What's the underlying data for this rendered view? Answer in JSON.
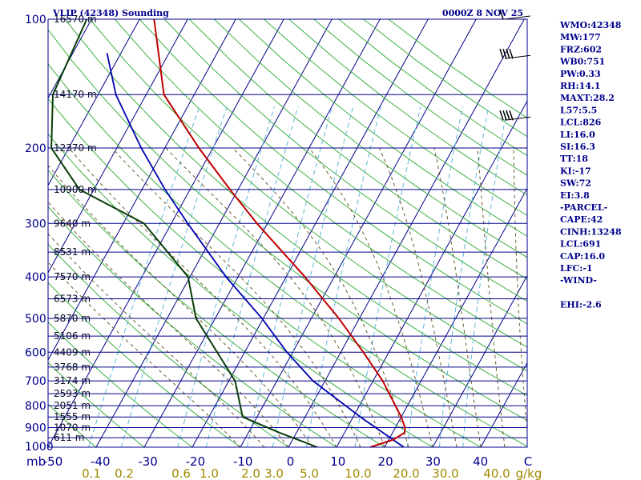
{
  "header": {
    "station_title": "VLIP (42348) Sounding",
    "time_label": "0000Z  8 NOV 25"
  },
  "indices": [
    "WMO:42348",
    "MW:177",
    "FRZ:602",
    "WB0:751",
    "PW:0.33",
    "RH:14.1",
    "MAXT:28.2",
    "L57:5.5",
    "LCL:826",
    "LI:16.0",
    "SI:16.3",
    "TT:18",
    "KI:-17",
    "SW:72",
    "EI:3.8",
    "-PARCEL-",
    "CAPE:42",
    "CINH:13248",
    "LCL:691",
    "CAP:16.0",
    "LFC:-1",
    "-WIND-",
    "",
    "EHI:-2.6"
  ],
  "colors": {
    "frame": "#00008b",
    "isobar": "#00008b",
    "isotherm": "#00008b",
    "dry_adiabat": "#3cb043",
    "mixing_ratio": "#5fb8d8",
    "moist_adiabat": "#6b5a2a",
    "temperature": "#c00000",
    "dewpoint": "#0a3d0a",
    "parcel": "#0000b0"
  },
  "chart_data": {
    "type": "skew-t",
    "x_axis_unit_label": "mb",
    "x_ticks": [
      "-50",
      "-40",
      "-30",
      "-20",
      "-10",
      "0",
      "10",
      "20",
      "30",
      "40",
      "C"
    ],
    "mixing_ratio_unit_label": "g/kg",
    "mixing_ratio_labels": [
      "0.1",
      "0.2",
      "0.6",
      "1.0",
      "2.0",
      "3.0",
      "5.0",
      "10.0",
      "20.0",
      "30.0",
      "40.0"
    ],
    "pressure_ticks": [
      "100",
      "200",
      "300",
      "400",
      "500",
      "600",
      "700",
      "800",
      "900",
      "1000"
    ],
    "pressure_range": [
      100,
      1000
    ],
    "temperature_range": [
      -50,
      50
    ],
    "height_labels": [
      {
        "p": 100,
        "label": "16570 m"
      },
      {
        "p": 150,
        "label": "14170 m"
      },
      {
        "p": 200,
        "label": "12370 m"
      },
      {
        "p": 250,
        "label": "10900 m"
      },
      {
        "p": 300,
        "label": "9640 m"
      },
      {
        "p": 350,
        "label": "8531 m"
      },
      {
        "p": 400,
        "label": "7570 m"
      },
      {
        "p": 450,
        "label": "6573 m"
      },
      {
        "p": 500,
        "label": "5870 m"
      },
      {
        "p": 550,
        "label": "5106 m"
      },
      {
        "p": 600,
        "label": "4409 m"
      },
      {
        "p": 650,
        "label": "3768 m"
      },
      {
        "p": 700,
        "label": "3174 m"
      },
      {
        "p": 750,
        "label": "2593 m"
      },
      {
        "p": 800,
        "label": "2051 m"
      },
      {
        "p": 850,
        "label": "1555 m"
      },
      {
        "p": 900,
        "label": "1070 m"
      },
      {
        "p": 950,
        "label": "611 m"
      }
    ],
    "temperature_profile": [
      {
        "p": 1000,
        "t": 17
      },
      {
        "p": 960,
        "t": 21
      },
      {
        "p": 925,
        "t": 22.5
      },
      {
        "p": 900,
        "t": 22
      },
      {
        "p": 850,
        "t": 20
      },
      {
        "p": 800,
        "t": 17.5
      },
      {
        "p": 700,
        "t": 12
      },
      {
        "p": 600,
        "t": 4.7
      },
      {
        "p": 500,
        "t": -4.3
      },
      {
        "p": 400,
        "t": -16.1
      },
      {
        "p": 300,
        "t": -32.2
      },
      {
        "p": 250,
        "t": -41.7
      },
      {
        "p": 200,
        "t": -52.9
      },
      {
        "p": 150,
        "t": -66.3
      },
      {
        "p": 100,
        "t": -77
      }
    ],
    "dewpoint_profile": [
      {
        "p": 1000,
        "t": 6
      },
      {
        "p": 925,
        "t": -3.5
      },
      {
        "p": 850,
        "t": -13
      },
      {
        "p": 700,
        "t": -18.7
      },
      {
        "p": 500,
        "t": -34
      },
      {
        "p": 400,
        "t": -40.4
      },
      {
        "p": 300,
        "t": -55.7
      },
      {
        "p": 250,
        "t": -73
      },
      {
        "p": 200,
        "t": -83.6
      },
      {
        "p": 150,
        "t": -89.4
      },
      {
        "p": 100,
        "t": -91
      }
    ],
    "parcel_profile": [
      {
        "p": 1000,
        "t": 24
      },
      {
        "p": 925,
        "t": 18
      },
      {
        "p": 850,
        "t": 11.5
      },
      {
        "p": 700,
        "t": -2.5
      },
      {
        "p": 600,
        "t": -11.2
      },
      {
        "p": 500,
        "t": -20.3
      },
      {
        "p": 400,
        "t": -32.5
      },
      {
        "p": 300,
        "t": -46.6
      },
      {
        "p": 250,
        "t": -55.2
      },
      {
        "p": 200,
        "t": -64.9
      },
      {
        "p": 150,
        "t": -76.3
      },
      {
        "p": 120,
        "t": -82.9
      }
    ],
    "wind_barbs": [
      {
        "p": 100,
        "speed_kt": 5
      },
      {
        "p": 122,
        "speed_kt": 40
      },
      {
        "p": 170,
        "speed_kt": 40
      }
    ]
  }
}
